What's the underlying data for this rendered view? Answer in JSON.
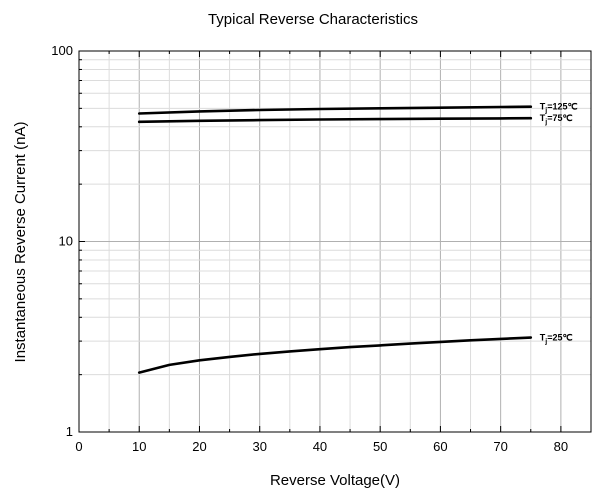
{
  "chart_data": {
    "type": "line",
    "title": "Typical Reverse Characteristics",
    "xlabel": "Reverse Voltage(V)",
    "ylabel": "Instantaneous Reverse Current (nA)",
    "xlim": [
      0,
      85
    ],
    "ylim": [
      1,
      100
    ],
    "yscale": "log",
    "grid": true,
    "x_ticks": [
      "0",
      "10",
      "20",
      "30",
      "40",
      "50",
      "60",
      "70",
      "80"
    ],
    "y_ticks": [
      "1",
      "10",
      "100"
    ],
    "series": [
      {
        "name": "Tj=125℃",
        "label_main": "T",
        "label_sub": "j",
        "label_rest": "=125℃",
        "x": [
          10,
          20,
          30,
          40,
          50,
          60,
          70,
          75
        ],
        "y": [
          47,
          48.2,
          49,
          49.6,
          50,
          50.4,
          50.8,
          51
        ]
      },
      {
        "name": "Tj=75℃",
        "label_main": "T",
        "label_sub": "j",
        "label_rest": "=75℃",
        "x": [
          10,
          20,
          30,
          40,
          50,
          60,
          70,
          75
        ],
        "y": [
          42.5,
          43,
          43.4,
          43.7,
          43.9,
          44.1,
          44.3,
          44.4
        ]
      },
      {
        "name": "Tj=25℃",
        "label_main": "T",
        "label_sub": "j",
        "label_rest": "=25℃",
        "x": [
          10,
          15,
          20,
          25,
          30,
          35,
          40,
          45,
          50,
          55,
          60,
          65,
          70,
          75
        ],
        "y": [
          2.05,
          2.25,
          2.38,
          2.48,
          2.57,
          2.65,
          2.72,
          2.79,
          2.85,
          2.91,
          2.97,
          3.03,
          3.08,
          3.13
        ]
      }
    ]
  }
}
